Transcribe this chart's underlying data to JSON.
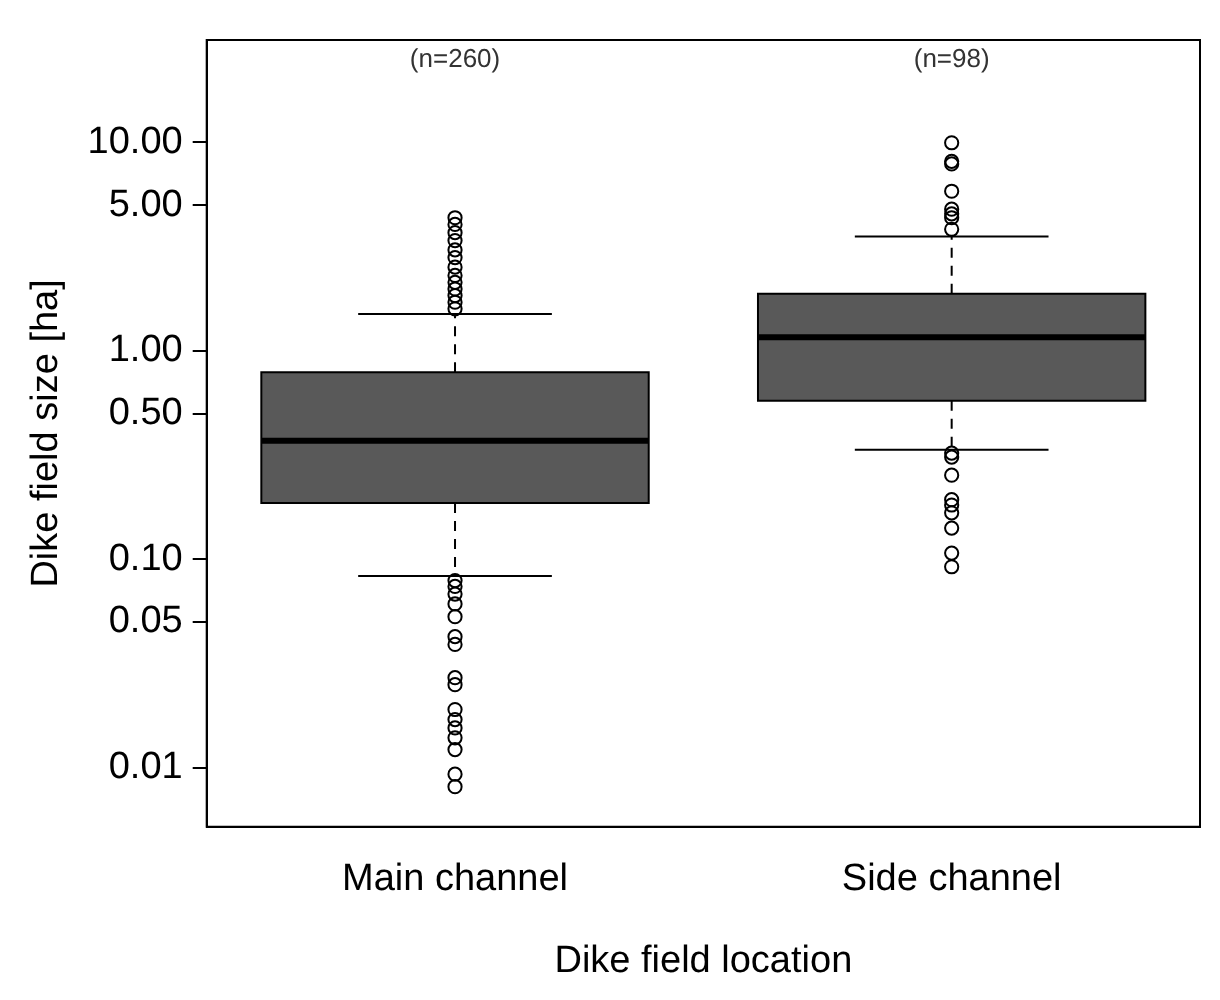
{
  "chart_data": {
    "type": "box",
    "xlabel": "Dike field location",
    "ylabel": "Dike field size [ha]",
    "categories": [
      "Main channel",
      "Side channel"
    ],
    "color": "#595959",
    "log": "y",
    "ylim": [
      0.0052,
      31
    ],
    "yticks": [
      {
        "value": 0.01,
        "label": "0.01"
      },
      {
        "value": 0.05,
        "label": "0.05"
      },
      {
        "value": 0.1,
        "label": "0.10"
      },
      {
        "value": 0.5,
        "label": "0.50"
      },
      {
        "value": 1,
        "label": "1.00"
      },
      {
        "value": 5,
        "label": "5.00"
      },
      {
        "value": 10,
        "label": "10.00"
      }
    ],
    "grid": false,
    "legend": false,
    "boxes": [
      {
        "low": 0.083,
        "q1": 0.186,
        "median": 0.37,
        "q3": 0.79,
        "high": 1.5,
        "outliers": [
          4.35,
          4.04,
          3.69,
          3.38,
          3.05,
          2.8,
          2.52,
          2.3,
          2.13,
          1.98,
          1.84,
          1.71,
          1.59,
          0.079,
          0.074,
          0.068,
          0.061,
          0.053,
          0.0425,
          0.039,
          0.027,
          0.025,
          0.019,
          0.017,
          0.0155,
          0.0139,
          0.0122,
          0.0093,
          0.0081
        ]
      },
      {
        "low": 0.335,
        "q1": 0.576,
        "median": 1.16,
        "q3": 1.88,
        "high": 3.54,
        "outliers": [
          9.96,
          8.11,
          7.88,
          5.83,
          4.78,
          4.54,
          4.35,
          3.83,
          0.323,
          0.309,
          0.253,
          0.193,
          0.182,
          0.167,
          0.141,
          0.107,
          0.092
        ]
      }
    ],
    "annotations": [
      "(n=260)",
      "(n=98)"
    ]
  }
}
